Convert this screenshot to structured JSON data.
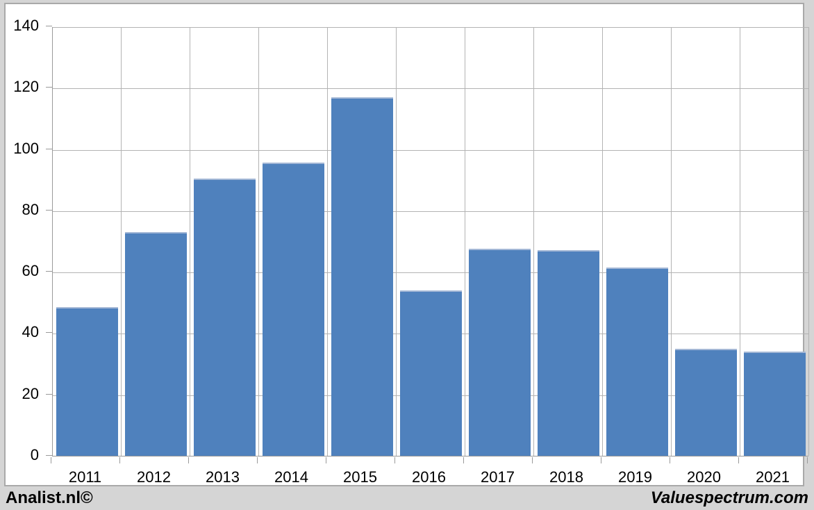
{
  "chart_data": {
    "type": "bar",
    "title": "",
    "xlabel": "",
    "ylabel": "",
    "categories": [
      "2011",
      "2012",
      "2013",
      "2014",
      "2015",
      "2016",
      "2017",
      "2018",
      "2019",
      "2020",
      "2021"
    ],
    "values": [
      48.5,
      73,
      90.5,
      95.5,
      117,
      54,
      67.5,
      67,
      61.5,
      35,
      34
    ],
    "ylim": [
      0,
      140
    ],
    "yticks": [
      0,
      20,
      40,
      60,
      80,
      100,
      120,
      140
    ],
    "grid": true,
    "legend": "none",
    "bar_color": "#4f81bd"
  },
  "footer": {
    "left_label": "Analist.nl©",
    "right_label": "Valuespectrum.com"
  },
  "colors": {
    "background": "#d5d5d5",
    "panel": "#ffffff",
    "panel_border": "#a9a9a9",
    "gridline": "#b3b3b3",
    "axis": "#9a9a9a",
    "bar": "#4f81bd",
    "bar_top_edge": "#a4b8d6",
    "text": "#000000"
  }
}
